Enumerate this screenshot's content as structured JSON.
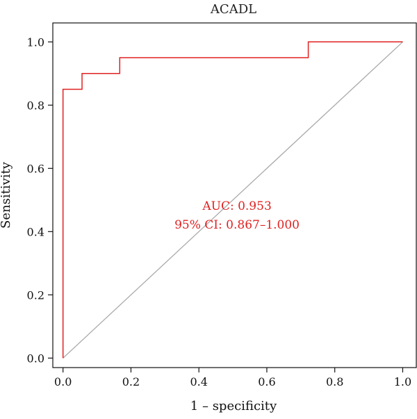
{
  "chart_data": {
    "type": "line",
    "title": "ACADL",
    "xlabel": "1 – specificity",
    "ylabel": "Sensitivity",
    "xlim": [
      -0.03,
      1.04
    ],
    "ylim": [
      -0.03,
      1.06
    ],
    "x_ticks": [
      0.0,
      0.2,
      0.4,
      0.6,
      0.8,
      1.0
    ],
    "x_tick_labels": [
      "0.0",
      "0.2",
      "0.4",
      "0.6",
      "0.8",
      "1.0"
    ],
    "y_ticks": [
      0.0,
      0.2,
      0.4,
      0.6,
      0.8,
      1.0
    ],
    "y_tick_labels": [
      "0.0",
      "0.2",
      "0.4",
      "0.6",
      "0.8",
      "1.0"
    ],
    "grid": false,
    "series": [
      {
        "color": "#e02020",
        "step": true,
        "x": [
          0.0,
          0.0,
          0.056,
          0.056,
          0.167,
          0.167,
          0.722,
          0.722,
          1.0
        ],
        "y": [
          0.0,
          0.85,
          0.85,
          0.9,
          0.9,
          0.95,
          0.95,
          1.0,
          1.0
        ]
      },
      {
        "color": "#aaaaaa",
        "x": [
          0.0,
          1.0
        ],
        "y": [
          0.0,
          1.0
        ]
      }
    ],
    "annotations": [
      {
        "text": "AUC: 0.953",
        "x": 0.5,
        "y": 0.48,
        "color": "#e02020"
      },
      {
        "text": "95% CI: 0.867–1.000",
        "x": 0.5,
        "y": 0.42,
        "color": "#e02020"
      }
    ]
  }
}
